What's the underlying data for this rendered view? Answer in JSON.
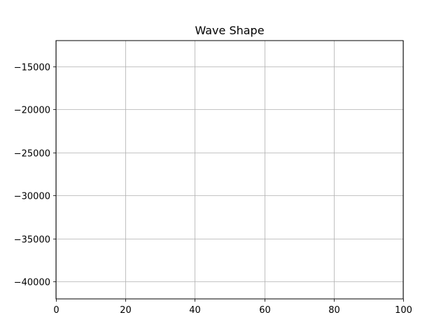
{
  "chart_data": {
    "type": "line",
    "title": "Wave Shape",
    "xlabel": "",
    "ylabel": "",
    "xlim": [
      0,
      100
    ],
    "ylim": [
      -42000,
      -12000
    ],
    "x_ticks": [
      0,
      20,
      40,
      60,
      80,
      100
    ],
    "x_tick_labels": [
      "0",
      "20",
      "40",
      "60",
      "80",
      "100"
    ],
    "y_ticks": [
      -15000,
      -20000,
      -25000,
      -30000,
      -35000,
      -40000
    ],
    "y_tick_labels": [
      "−15000",
      "−20000",
      "−25000",
      "−30000",
      "−35000",
      "−40000"
    ],
    "grid": true,
    "series": [],
    "colors": {
      "grid": "#b0b0b0",
      "axes": "#000000",
      "background": "#ffffff"
    }
  }
}
